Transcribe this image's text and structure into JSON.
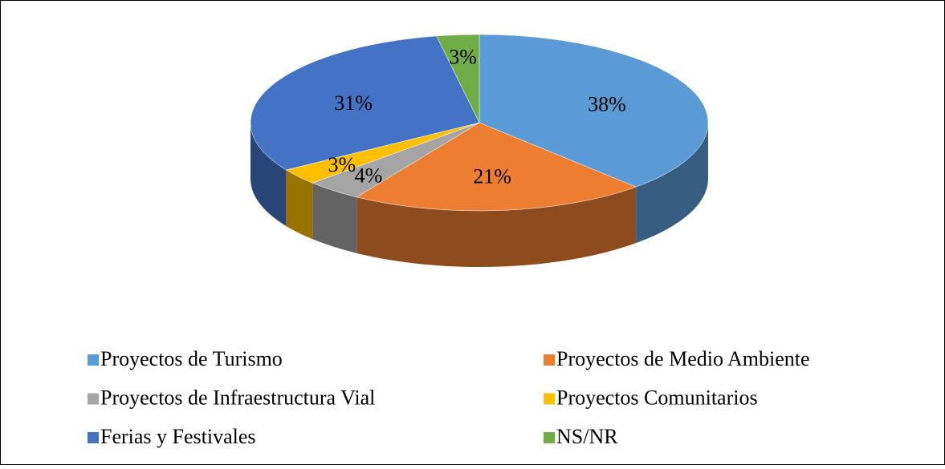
{
  "chart_data": {
    "type": "pie",
    "categories": [
      "Proyectos de Turismo",
      "Proyectos de Medio Ambiente",
      "Proyectos de Infraestructura Vial",
      "Proyectos Comunitarios",
      "Ferias y Festivales",
      "NS/NR"
    ],
    "values": [
      38,
      21,
      4,
      3,
      31,
      3
    ],
    "value_labels": [
      "38%",
      "21%",
      "4%",
      "3%",
      "31%",
      "3%"
    ],
    "colors": [
      "#5b9bd5",
      "#ed7d31",
      "#a5a5a5",
      "#ffc000",
      "#4472c4",
      "#70ad47"
    ]
  }
}
